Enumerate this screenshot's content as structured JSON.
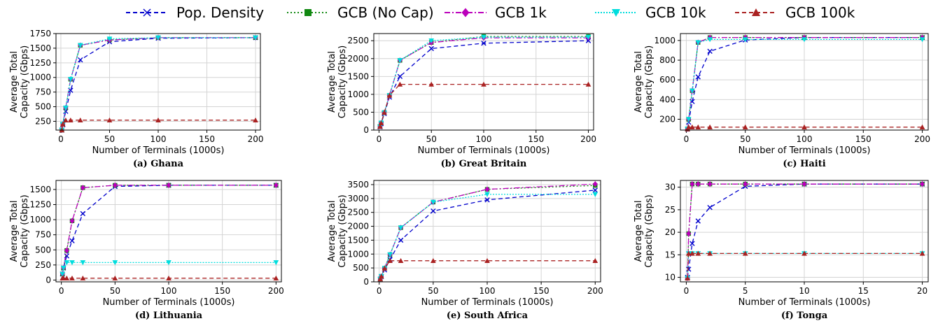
{
  "legend": [
    {
      "name": "Pop. Density",
      "color": "#0000cc",
      "marker": "x",
      "dash": "6,4"
    },
    {
      "name": "GCB (No Cap)",
      "color": "#118811",
      "marker": "square",
      "dash": "2,3"
    },
    {
      "name": "GCB 1k",
      "color": "#bb00bb",
      "marker": "diamond",
      "dash": "8,3,2,3"
    },
    {
      "name": "GCB 10k",
      "color": "#00dddd",
      "marker": "tri-down",
      "dash": "2,2"
    },
    {
      "name": "GCB 100k",
      "color": "#aa2222",
      "marker": "tri-up",
      "dash": "6,4"
    }
  ],
  "chart_data": [
    {
      "type": "line",
      "caption": "(a) Ghana",
      "xlabel": "Number of Terminals (1000s)",
      "ylabel": [
        "Average Total",
        "Capacity (Gbps)"
      ],
      "xlim": [
        -5,
        205
      ],
      "ylim": [
        100,
        1750
      ],
      "xticks": [
        0,
        50,
        100,
        150,
        200
      ],
      "yticks": [
        250,
        500,
        750,
        1000,
        1250,
        1500,
        1750
      ],
      "yticklabels": [
        "250",
        "500",
        "750",
        "1000",
        "1250",
        "1500",
        "1750"
      ],
      "x": [
        1,
        2,
        5,
        10,
        20,
        50,
        100,
        200
      ],
      "series": [
        {
          "name": "Pop. Density",
          "values": [
            100,
            190,
            420,
            780,
            1300,
            1610,
            1670,
            1680
          ]
        },
        {
          "name": "GCB (No Cap)",
          "values": [
            100,
            200,
            480,
            970,
            1550,
            1640,
            1680,
            1680
          ]
        },
        {
          "name": "GCB 1k",
          "values": [
            100,
            200,
            480,
            970,
            1550,
            1640,
            1680,
            1680
          ]
        },
        {
          "name": "GCB 10k",
          "values": [
            100,
            200,
            480,
            970,
            1550,
            1660,
            1680,
            1680
          ]
        },
        {
          "name": "GCB 100k",
          "values": [
            100,
            200,
            270,
            270,
            270,
            270,
            270,
            270
          ]
        }
      ]
    },
    {
      "type": "line",
      "caption": "(b) Great Britain",
      "xlabel": "Number of Terminals (1000s)",
      "ylabel": [
        "Average Total",
        "Capacity (Gbps)"
      ],
      "xlim": [
        -5,
        205
      ],
      "ylim": [
        0,
        2700
      ],
      "xticks": [
        0,
        50,
        100,
        150,
        200
      ],
      "yticks": [
        0,
        500,
        1000,
        1500,
        2000,
        2500
      ],
      "yticklabels": [
        "0",
        "500",
        "1000",
        "1500",
        "2000",
        "2500"
      ],
      "x": [
        1,
        2,
        5,
        10,
        20,
        50,
        100,
        200
      ],
      "series": [
        {
          "name": "Pop. Density",
          "values": [
            90,
            180,
            460,
            920,
            1500,
            2280,
            2430,
            2500
          ]
        },
        {
          "name": "GCB (No Cap)",
          "values": [
            100,
            200,
            490,
            970,
            1950,
            2450,
            2620,
            2620
          ]
        },
        {
          "name": "GCB 1k",
          "values": [
            100,
            200,
            490,
            970,
            1950,
            2450,
            2580,
            2580
          ]
        },
        {
          "name": "GCB 10k",
          "values": [
            100,
            200,
            490,
            970,
            1950,
            2500,
            2600,
            2600
          ]
        },
        {
          "name": "GCB 100k",
          "values": [
            100,
            200,
            490,
            970,
            1280,
            1280,
            1280,
            1280
          ]
        }
      ]
    },
    {
      "type": "line",
      "caption": "(c) Haiti",
      "xlabel": "Number of Terminals (1000s)",
      "ylabel": [
        "Average Total",
        "Capacity (Gbps)"
      ],
      "xlim": [
        -5,
        205
      ],
      "ylim": [
        90,
        1070
      ],
      "xticks": [
        0,
        50,
        100,
        150,
        200
      ],
      "yticks": [
        200,
        400,
        600,
        800,
        1000
      ],
      "yticklabels": [
        "200",
        "400",
        "600",
        "800",
        "1000"
      ],
      "x": [
        1,
        2,
        5,
        10,
        20,
        50,
        100,
        200
      ],
      "series": [
        {
          "name": "Pop. Density",
          "values": [
            100,
            170,
            380,
            630,
            890,
            1005,
            1030,
            1030
          ]
        },
        {
          "name": "GCB (No Cap)",
          "values": [
            100,
            200,
            490,
            980,
            1030,
            1030,
            1030,
            1030
          ]
        },
        {
          "name": "GCB 1k",
          "values": [
            100,
            200,
            490,
            980,
            1030,
            1030,
            1030,
            1030
          ]
        },
        {
          "name": "GCB 10k",
          "values": [
            100,
            200,
            490,
            980,
            1010,
            1010,
            1010,
            1010
          ]
        },
        {
          "name": "GCB 100k",
          "values": [
            100,
            120,
            120,
            120,
            120,
            120,
            120,
            120
          ]
        }
      ]
    },
    {
      "type": "line",
      "caption": "(d) Lithuania",
      "xlabel": "Number of Terminals (1000s)",
      "ylabel": [
        "Average Total",
        "Capacity (Gbps)"
      ],
      "xlim": [
        -5,
        205
      ],
      "ylim": [
        -30,
        1650
      ],
      "xticks": [
        0,
        50,
        100,
        150,
        200
      ],
      "yticks": [
        0,
        250,
        500,
        750,
        1000,
        1250,
        1500
      ],
      "yticklabels": [
        "0",
        "250",
        "500",
        "750",
        "1000",
        "1250",
        "1500"
      ],
      "x": [
        1,
        2,
        5,
        10,
        20,
        50,
        100,
        200
      ],
      "series": [
        {
          "name": "Pop. Density",
          "values": [
            100,
            200,
            400,
            650,
            1100,
            1550,
            1570,
            1570
          ]
        },
        {
          "name": "GCB (No Cap)",
          "values": [
            100,
            200,
            490,
            980,
            1530,
            1570,
            1570,
            1570
          ]
        },
        {
          "name": "GCB 1k",
          "values": [
            100,
            200,
            490,
            980,
            1530,
            1570,
            1570,
            1570
          ]
        },
        {
          "name": "GCB 10k",
          "values": [
            100,
            200,
            290,
            290,
            290,
            290,
            290,
            290
          ]
        },
        {
          "name": "GCB 100k",
          "values": [
            30,
            30,
            30,
            30,
            30,
            30,
            30,
            30
          ]
        }
      ]
    },
    {
      "type": "line",
      "caption": "(e) South Africa",
      "xlabel": "Number of Terminals (1000s)",
      "ylabel": [
        "Average Total",
        "Capacity (Gbps)"
      ],
      "xlim": [
        -5,
        205
      ],
      "ylim": [
        0,
        3650
      ],
      "xticks": [
        0,
        50,
        100,
        150,
        200
      ],
      "yticks": [
        0,
        500,
        1000,
        1500,
        2000,
        2500,
        3000,
        3500
      ],
      "yticklabels": [
        "0",
        "500",
        "1000",
        "1500",
        "2000",
        "2500",
        "3000",
        "3500"
      ],
      "x": [
        1,
        2,
        5,
        10,
        20,
        50,
        100,
        200
      ],
      "series": [
        {
          "name": "Pop. Density",
          "values": [
            100,
            190,
            430,
            800,
            1500,
            2550,
            2950,
            3300
          ]
        },
        {
          "name": "GCB (No Cap)",
          "values": [
            100,
            200,
            490,
            980,
            1950,
            2870,
            3330,
            3470
          ]
        },
        {
          "name": "GCB 1k",
          "values": [
            100,
            200,
            490,
            980,
            1950,
            2870,
            3330,
            3520
          ]
        },
        {
          "name": "GCB 10k",
          "values": [
            100,
            200,
            490,
            980,
            1950,
            2870,
            3150,
            3150
          ]
        },
        {
          "name": "GCB 100k",
          "values": [
            100,
            200,
            490,
            760,
            760,
            760,
            760,
            760
          ]
        }
      ]
    },
    {
      "type": "line",
      "caption": "(f) Tonga",
      "xlabel": "Number of Terminals (1000s)",
      "ylabel": [
        "Average Total",
        "Capacity (Gbps)"
      ],
      "xlim": [
        -0.5,
        20.5
      ],
      "ylim": [
        9,
        31.5
      ],
      "xticks": [
        0,
        5,
        10,
        15,
        20
      ],
      "yticks": [
        10,
        15,
        20,
        25,
        30
      ],
      "yticklabels": [
        "10",
        "15",
        "20",
        "25",
        "30"
      ],
      "x": [
        0.1,
        0.2,
        0.5,
        1,
        2,
        5,
        10,
        20
      ],
      "series": [
        {
          "name": "Pop. Density",
          "values": [
            10,
            11.8,
            17.5,
            22.5,
            25.5,
            30.2,
            30.7,
            30.7
          ]
        },
        {
          "name": "GCB (No Cap)",
          "values": [
            9.8,
            19.7,
            30.7,
            30.7,
            30.7,
            30.7,
            30.7,
            30.7
          ]
        },
        {
          "name": "GCB 1k",
          "values": [
            9.8,
            19.7,
            30.7,
            30.7,
            30.7,
            30.7,
            30.7,
            30.7
          ]
        },
        {
          "name": "GCB 10k",
          "values": [
            9.8,
            15.3,
            15.3,
            15.3,
            15.3,
            15.3,
            15.3,
            15.3
          ]
        },
        {
          "name": "GCB 100k",
          "values": [
            9.8,
            15.3,
            15.3,
            15.3,
            15.3,
            15.3,
            15.3,
            15.3
          ]
        }
      ]
    }
  ]
}
